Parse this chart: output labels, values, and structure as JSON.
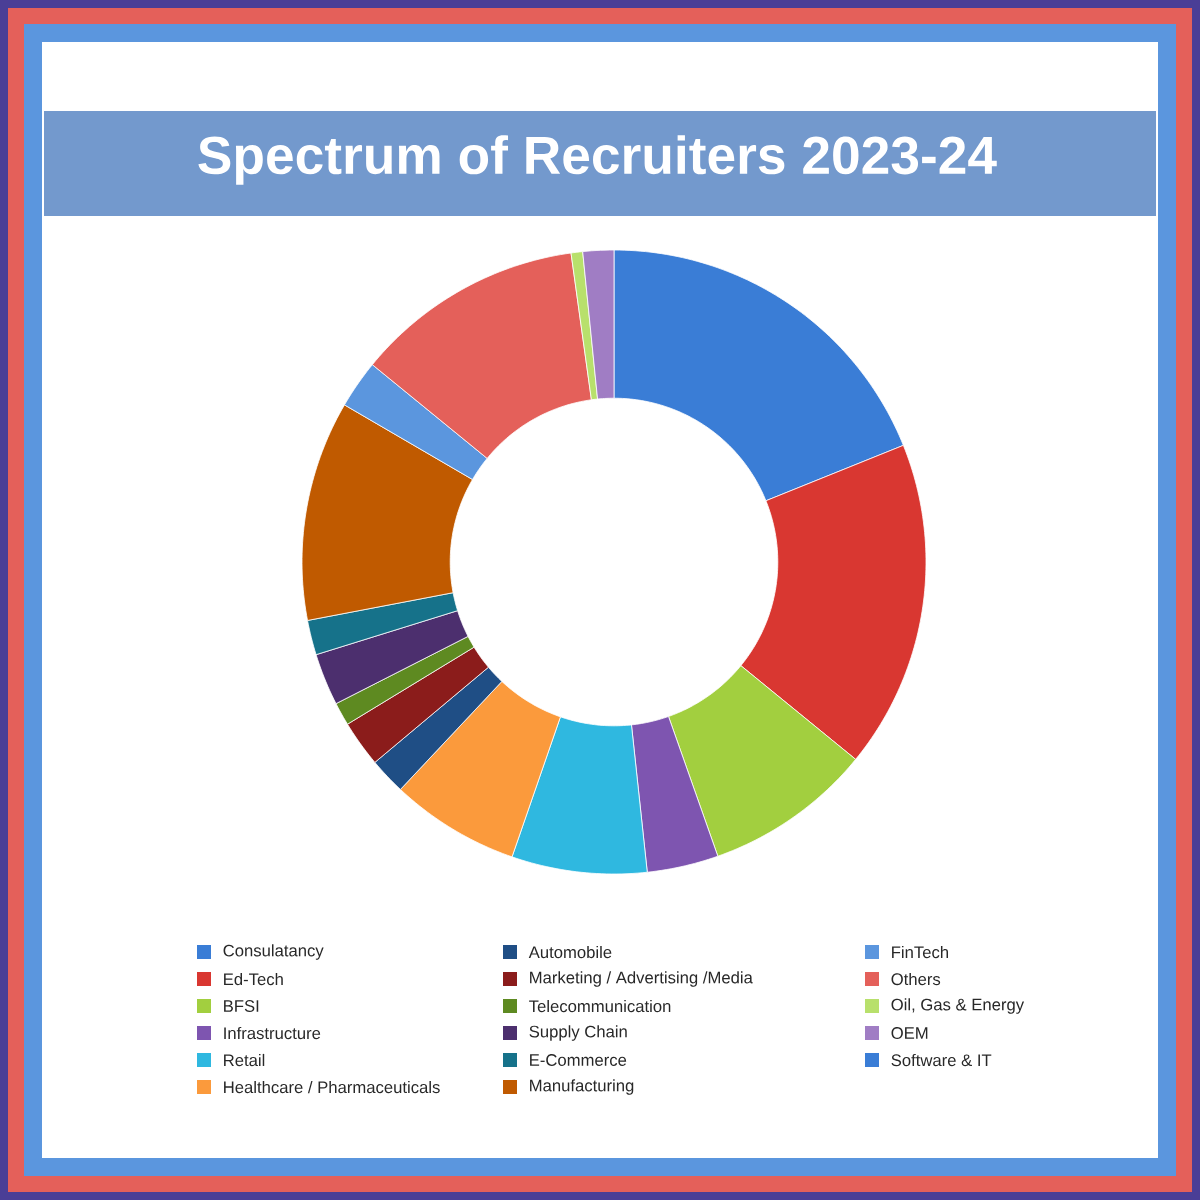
{
  "chart_data": {
    "type": "donut",
    "title": "Spectrum of Recruiters 2023-24",
    "categories": [
      "Consulatancy",
      "Ed-Tech",
      "BFSI",
      "Infrastructure",
      "Retail",
      "Healthcare / Pharmaceuticals",
      "Automobile",
      "Marketing / Advertising /Media",
      "Telecommunication",
      "Supply Chain",
      "E-Commerce",
      "Manufacturing",
      "FinTech",
      "Others",
      "Oil, Gas & Energy",
      "OEM",
      "Software & IT"
    ],
    "values": [
      18.9,
      17.0,
      8.7,
      3.7,
      7.0,
      6.7,
      1.9,
      2.4,
      1.2,
      2.7,
      1.8,
      11.4,
      2.5,
      11.9,
      0.6,
      1.6,
      0
    ],
    "colors": [
      "#3a7dd6",
      "#d93731",
      "#a2cf3f",
      "#7e55b0",
      "#2fb8e0",
      "#fb9a3c",
      "#1f4e85",
      "#8b1c1b",
      "#5e8a21",
      "#4c2f6e",
      "#16728a",
      "#c05a00",
      "#5b96de",
      "#e4605a",
      "#b8e06c",
      "#a07dc4",
      "#3a7dd6"
    ],
    "legend": "bottom"
  }
}
